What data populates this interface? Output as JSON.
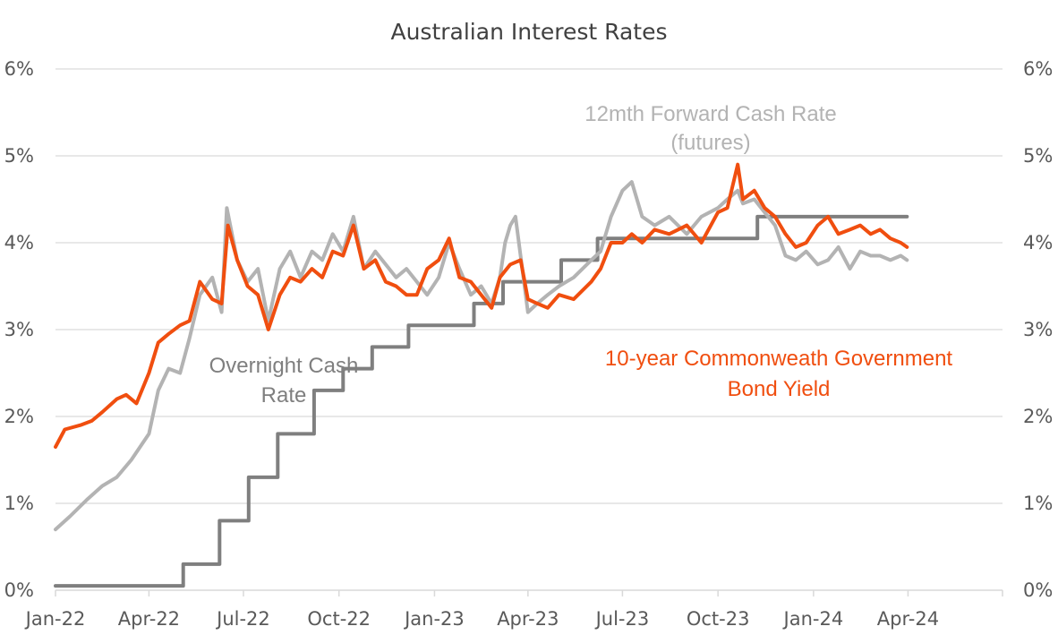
{
  "chart_data": {
    "type": "line",
    "title": "Australian Interest Rates",
    "y_ticks": [
      "0%",
      "1%",
      "2%",
      "3%",
      "4%",
      "5%",
      "6%"
    ],
    "ylim": [
      0,
      6
    ],
    "x_ticks": [
      "Jan-22",
      "Apr-22",
      "Jul-22",
      "Oct-22",
      "Jan-23",
      "Apr-23",
      "Jul-23",
      "Oct-23",
      "Jan-24",
      "Apr-24"
    ],
    "x_tick_dates": [
      "2022-01-01",
      "2022-04-01",
      "2022-07-01",
      "2022-10-01",
      "2023-01-01",
      "2023-04-01",
      "2023-07-01",
      "2023-10-01",
      "2024-01-01",
      "2024-04-01"
    ],
    "xlim": [
      "2022-01-01",
      "2024-07-01"
    ],
    "grid": true,
    "annotations": {
      "forward_line1": "12mth Forward Cash Rate",
      "forward_line2": "(futures)",
      "cash_line1": "Overnight Cash",
      "cash_line2": "Rate",
      "bond_line1": "10-year Commonweath Government",
      "bond_line2": "Bond Yield"
    },
    "colors": {
      "bond": "#F04E0F",
      "forward": "#B3B3B3",
      "cash": "#7F7F7F",
      "grid": "#D9D9D9",
      "text": "#595959"
    },
    "series": [
      {
        "key": "cash",
        "step": true,
        "x": [
          "2022-01-01",
          "2022-05-04",
          "2022-06-08",
          "2022-07-06",
          "2022-08-03",
          "2022-09-07",
          "2022-10-05",
          "2022-11-02",
          "2022-12-07",
          "2023-02-08",
          "2023-03-08",
          "2023-05-03",
          "2023-06-07",
          "2023-11-08",
          "2024-03-31"
        ],
        "values": [
          0.05,
          0.3,
          0.8,
          1.3,
          1.8,
          2.3,
          2.55,
          2.8,
          3.05,
          3.3,
          3.55,
          3.8,
          4.05,
          4.3,
          4.3
        ]
      },
      {
        "key": "forward",
        "x": [
          "2022-01-01",
          "2022-01-15",
          "2022-02-01",
          "2022-02-15",
          "2022-03-01",
          "2022-03-15",
          "2022-04-01",
          "2022-04-10",
          "2022-04-20",
          "2022-05-01",
          "2022-05-10",
          "2022-05-20",
          "2022-06-01",
          "2022-06-10",
          "2022-06-15",
          "2022-06-25",
          "2022-07-05",
          "2022-07-15",
          "2022-07-25",
          "2022-08-05",
          "2022-08-15",
          "2022-08-25",
          "2022-09-05",
          "2022-09-15",
          "2022-09-25",
          "2022-10-05",
          "2022-10-15",
          "2022-10-25",
          "2022-11-05",
          "2022-11-15",
          "2022-11-25",
          "2022-12-05",
          "2022-12-15",
          "2022-12-25",
          "2023-01-05",
          "2023-01-15",
          "2023-01-25",
          "2023-02-05",
          "2023-02-15",
          "2023-02-25",
          "2023-03-05",
          "2023-03-10",
          "2023-03-15",
          "2023-03-20",
          "2023-04-01",
          "2023-04-10",
          "2023-04-20",
          "2023-05-01",
          "2023-05-15",
          "2023-06-01",
          "2023-06-10",
          "2023-06-20",
          "2023-07-01",
          "2023-07-10",
          "2023-07-20",
          "2023-08-01",
          "2023-08-15",
          "2023-09-01",
          "2023-09-15",
          "2023-10-01",
          "2023-10-10",
          "2023-10-20",
          "2023-10-25",
          "2023-11-05",
          "2023-11-15",
          "2023-11-25",
          "2023-12-05",
          "2023-12-15",
          "2023-12-25",
          "2024-01-05",
          "2024-01-15",
          "2024-01-25",
          "2024-02-05",
          "2024-02-15",
          "2024-02-25",
          "2024-03-05",
          "2024-03-15",
          "2024-03-25",
          "2024-03-31"
        ],
        "values": [
          0.7,
          0.85,
          1.05,
          1.2,
          1.3,
          1.5,
          1.8,
          2.3,
          2.55,
          2.5,
          2.9,
          3.4,
          3.6,
          3.2,
          4.4,
          3.8,
          3.55,
          3.7,
          3.1,
          3.7,
          3.9,
          3.6,
          3.9,
          3.8,
          4.1,
          3.9,
          4.3,
          3.7,
          3.9,
          3.75,
          3.6,
          3.7,
          3.55,
          3.4,
          3.6,
          4.0,
          3.7,
          3.4,
          3.5,
          3.3,
          3.6,
          4.0,
          4.2,
          4.3,
          3.2,
          3.3,
          3.4,
          3.5,
          3.6,
          3.8,
          3.9,
          4.3,
          4.6,
          4.7,
          4.3,
          4.2,
          4.3,
          4.1,
          4.3,
          4.4,
          4.5,
          4.6,
          4.45,
          4.5,
          4.35,
          4.2,
          3.85,
          3.8,
          3.9,
          3.75,
          3.8,
          3.95,
          3.7,
          3.9,
          3.85,
          3.85,
          3.8,
          3.85,
          3.8
        ]
      },
      {
        "key": "bond",
        "x": [
          "2022-01-01",
          "2022-01-10",
          "2022-01-25",
          "2022-02-05",
          "2022-02-15",
          "2022-03-01",
          "2022-03-10",
          "2022-03-20",
          "2022-04-01",
          "2022-04-10",
          "2022-04-20",
          "2022-05-01",
          "2022-05-10",
          "2022-05-20",
          "2022-06-01",
          "2022-06-10",
          "2022-06-16",
          "2022-06-25",
          "2022-07-05",
          "2022-07-15",
          "2022-07-25",
          "2022-08-05",
          "2022-08-15",
          "2022-08-25",
          "2022-09-05",
          "2022-09-15",
          "2022-09-25",
          "2022-10-05",
          "2022-10-15",
          "2022-10-25",
          "2022-11-05",
          "2022-11-15",
          "2022-11-25",
          "2022-12-05",
          "2022-12-15",
          "2022-12-25",
          "2023-01-05",
          "2023-01-15",
          "2023-01-25",
          "2023-02-05",
          "2023-02-15",
          "2023-02-25",
          "2023-03-05",
          "2023-03-15",
          "2023-03-25",
          "2023-04-01",
          "2023-04-10",
          "2023-04-20",
          "2023-05-01",
          "2023-05-15",
          "2023-06-01",
          "2023-06-10",
          "2023-06-20",
          "2023-07-01",
          "2023-07-10",
          "2023-07-20",
          "2023-08-01",
          "2023-08-15",
          "2023-09-01",
          "2023-09-15",
          "2023-10-01",
          "2023-10-10",
          "2023-10-20",
          "2023-10-25",
          "2023-11-05",
          "2023-11-15",
          "2023-11-25",
          "2023-12-05",
          "2023-12-15",
          "2023-12-25",
          "2024-01-05",
          "2024-01-15",
          "2024-01-25",
          "2024-02-05",
          "2024-02-15",
          "2024-02-25",
          "2024-03-05",
          "2024-03-15",
          "2024-03-25",
          "2024-03-31"
        ],
        "values": [
          1.65,
          1.85,
          1.9,
          1.95,
          2.05,
          2.2,
          2.25,
          2.15,
          2.5,
          2.85,
          2.95,
          3.05,
          3.1,
          3.55,
          3.35,
          3.3,
          4.2,
          3.8,
          3.5,
          3.4,
          3.0,
          3.4,
          3.6,
          3.55,
          3.7,
          3.6,
          3.9,
          3.85,
          4.2,
          3.7,
          3.8,
          3.55,
          3.5,
          3.4,
          3.4,
          3.7,
          3.8,
          4.05,
          3.6,
          3.55,
          3.4,
          3.25,
          3.6,
          3.75,
          3.8,
          3.35,
          3.3,
          3.25,
          3.4,
          3.35,
          3.55,
          3.7,
          4.0,
          4.0,
          4.1,
          4.0,
          4.15,
          4.1,
          4.2,
          4.0,
          4.35,
          4.4,
          4.9,
          4.5,
          4.6,
          4.4,
          4.3,
          4.1,
          3.95,
          4.0,
          4.2,
          4.3,
          4.1,
          4.15,
          4.2,
          4.1,
          4.15,
          4.05,
          4.0,
          3.95
        ]
      }
    ]
  }
}
